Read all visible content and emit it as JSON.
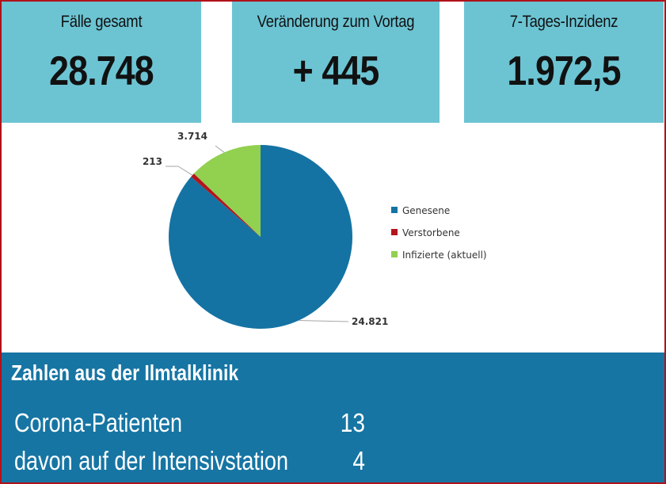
{
  "stats": [
    {
      "label": "Fälle gesamt",
      "value": "28.748"
    },
    {
      "label": "Veränderung zum Vortag",
      "value": "+ 445"
    },
    {
      "label": "7-Tages-Inzidenz",
      "value": "1.972,5"
    }
  ],
  "chart_data": {
    "type": "pie",
    "slices": [
      {
        "name": "Genesene",
        "value": 24821,
        "label": "24.821",
        "color": "#1473a3"
      },
      {
        "name": "Verstorbene",
        "value": 213,
        "label": "213",
        "color": "#b4151b"
      },
      {
        "name": "Infizierte (aktuell)",
        "value": 3714,
        "label": "3.714",
        "color": "#92d050"
      }
    ],
    "legend": "right"
  },
  "clinic": {
    "title": "Zahlen aus der Ilmtalklinik",
    "rows": [
      {
        "label": "Corona-Patienten",
        "value": "13"
      },
      {
        "label": "davon auf der Intensivstation",
        "value": "4"
      }
    ]
  }
}
